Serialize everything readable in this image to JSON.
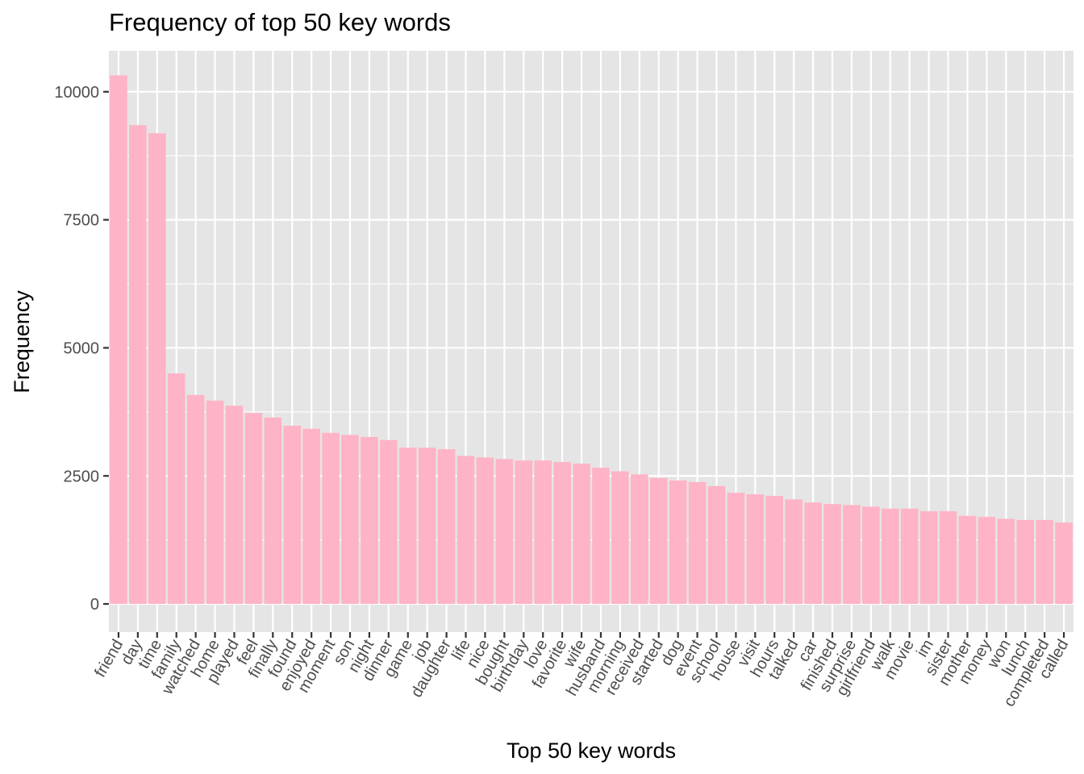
{
  "chart_data": {
    "type": "bar",
    "title": "Frequency of top 50 key words",
    "xlabel": "Top 50 key words",
    "ylabel": "Frequency",
    "ylim": [
      -550,
      10800
    ],
    "yticks": [
      0,
      2500,
      5000,
      7500,
      10000
    ],
    "ytick_labels": [
      "0",
      "2500",
      "5000",
      "7500",
      "10000"
    ],
    "grid": true,
    "legend": "none",
    "bar_color": "#FFB3C6",
    "panel_color": "#E5E5E5",
    "grid_color": "#FFFFFF",
    "categories": [
      "friend",
      "day",
      "time",
      "family",
      "watched",
      "home",
      "played",
      "feel",
      "finally",
      "found",
      "enjoyed",
      "moment",
      "son",
      "night",
      "dinner",
      "game",
      "job",
      "daughter",
      "life",
      "nice",
      "bought",
      "birthday",
      "love",
      "favorite",
      "wife",
      "husband",
      "morning",
      "received",
      "started",
      "dog",
      "event",
      "school",
      "house",
      "visit",
      "hours",
      "talked",
      "car",
      "finished",
      "surprise",
      "girlfriend",
      "walk",
      "movie",
      "im",
      "sister",
      "mother",
      "money",
      "won",
      "lunch",
      "completed",
      "called"
    ],
    "values": [
      10320,
      9350,
      9190,
      4500,
      4080,
      3970,
      3870,
      3730,
      3640,
      3480,
      3420,
      3340,
      3300,
      3260,
      3200,
      3050,
      3050,
      3020,
      2890,
      2860,
      2830,
      2800,
      2800,
      2770,
      2740,
      2660,
      2590,
      2530,
      2460,
      2410,
      2380,
      2300,
      2170,
      2140,
      2110,
      2040,
      1980,
      1950,
      1930,
      1900,
      1860,
      1860,
      1810,
      1810,
      1720,
      1700,
      1660,
      1640,
      1640,
      1590
    ]
  }
}
